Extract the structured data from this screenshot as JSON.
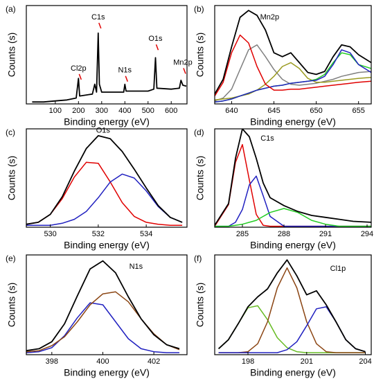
{
  "chart_data": [
    {
      "type": "line",
      "label": "(a)",
      "xlabel": "Binding energy (eV)",
      "ylabel": "Counts (s)",
      "xlim": [
        -25,
        668
      ],
      "ylim": [
        0,
        100
      ],
      "xticks": [
        100,
        200,
        300,
        400,
        500,
        600
      ],
      "x": [
        0,
        50,
        100,
        150,
        190,
        200,
        205,
        260,
        270,
        278,
        285,
        290,
        300,
        350,
        395,
        400,
        405,
        450,
        500,
        525,
        532,
        538,
        600,
        635,
        642,
        650,
        665
      ],
      "series": [
        {
          "color": "#000000",
          "values": [
            2,
            2,
            3,
            4,
            6,
            26,
            8,
            10,
            20,
            12,
            72,
            20,
            12,
            12,
            12,
            20,
            13,
            13,
            13,
            15,
            47,
            16,
            15,
            16,
            24,
            19,
            18
          ]
        }
      ],
      "annotations": [
        {
          "text": "Cl2p",
          "x": 200,
          "y": 36
        },
        {
          "text": "C1s",
          "x": 285,
          "y": 88
        },
        {
          "text": "N1s",
          "x": 400,
          "y": 34
        },
        {
          "text": "O1s",
          "x": 532,
          "y": 66
        },
        {
          "text": "Mn2p",
          "x": 650,
          "y": 42
        }
      ]
    },
    {
      "type": "line",
      "label": "(b)",
      "xlabel": "Binding energy (eV)",
      "ylabel": "Counts (s)",
      "xlim": [
        638,
        656.5
      ],
      "ylim": [
        0,
        100
      ],
      "xticks": [
        640,
        645,
        650,
        655
      ],
      "x": [
        638,
        639,
        640,
        641,
        642,
        643,
        644,
        645,
        646,
        647,
        648,
        649,
        650,
        651,
        652,
        653,
        654,
        655,
        656.5
      ],
      "series": [
        {
          "color": "#808080",
          "values": [
            3,
            6,
            15,
            35,
            55,
            60,
            48,
            35,
            25,
            20,
            19,
            20,
            21,
            23,
            25,
            28,
            30,
            32,
            33
          ]
        },
        {
          "color": "#9a9a20",
          "values": [
            4,
            5,
            6,
            8,
            10,
            14,
            20,
            28,
            38,
            42,
            36,
            26,
            22,
            22,
            23,
            24,
            25,
            26,
            27
          ]
        },
        {
          "color": "#22cc22",
          "values": [
            2,
            3,
            5,
            8,
            11,
            14,
            16,
            18,
            19,
            21,
            22,
            23,
            25,
            30,
            42,
            52,
            50,
            40,
            36
          ]
        },
        {
          "color": "#2020c0",
          "values": [
            2,
            3,
            5,
            8,
            11,
            14,
            16,
            18,
            19,
            21,
            22,
            23,
            24,
            28,
            40,
            55,
            52,
            40,
            32
          ]
        },
        {
          "color": "#e00000",
          "values": [
            8,
            22,
            52,
            70,
            62,
            38,
            20,
            14,
            14,
            15,
            15,
            16,
            17,
            18,
            19,
            20,
            21,
            22,
            23
          ]
        },
        {
          "color": "#000000",
          "values": [
            10,
            25,
            58,
            88,
            95,
            90,
            75,
            52,
            48,
            52,
            42,
            32,
            30,
            33,
            48,
            60,
            58,
            50,
            42
          ]
        }
      ],
      "annotations": [
        {
          "text": "Mn2p",
          "x": 644.5,
          "y": 88
        }
      ]
    },
    {
      "type": "line",
      "label": "(c)",
      "xlabel": "Binding energy (eV)",
      "ylabel": "Counts (s)",
      "xlim": [
        529,
        535.7
      ],
      "ylim": [
        0,
        100
      ],
      "xticks": [
        530,
        532,
        534
      ],
      "x": [
        529,
        529.5,
        530,
        530.5,
        531,
        531.5,
        532,
        532.5,
        533,
        533.5,
        534,
        534.5,
        535,
        535.5
      ],
      "series": [
        {
          "color": "#e00000",
          "values": [
            3,
            5,
            13,
            29,
            51,
            66,
            65,
            46,
            25,
            11,
            5,
            3,
            2,
            2
          ]
        },
        {
          "color": "#2020c0",
          "values": [
            2,
            2,
            2,
            4,
            8,
            16,
            30,
            46,
            54,
            50,
            37,
            21,
            10,
            5
          ]
        },
        {
          "color": "#000000",
          "values": [
            3,
            5,
            13,
            31,
            57,
            80,
            93,
            90,
            77,
            59,
            40,
            22,
            10,
            5
          ]
        }
      ],
      "annotations": [
        {
          "text": "O1s",
          "x": 532.2,
          "y": 98
        }
      ]
    },
    {
      "type": "line",
      "label": "(d)",
      "xlabel": "Binding energy (eV)",
      "ylabel": "Counts (s)",
      "xlim": [
        283,
        294.3
      ],
      "ylim": [
        0,
        100
      ],
      "xticks": [
        285,
        288,
        291,
        294
      ],
      "x": [
        283,
        284,
        284.5,
        285,
        285.5,
        286,
        286.5,
        287,
        288,
        289,
        290,
        291,
        292,
        293,
        294.3
      ],
      "series": [
        {
          "color": "#e00000",
          "values": [
            1,
            23,
            66,
            84,
            48,
            13,
            2,
            1,
            1,
            1,
            1,
            1,
            1,
            1,
            1
          ]
        },
        {
          "color": "#2020c0",
          "values": [
            1,
            1,
            5,
            18,
            43,
            52,
            32,
            11,
            1,
            1,
            1,
            1,
            1,
            1,
            1
          ]
        },
        {
          "color": "#22cc22",
          "values": [
            1,
            1,
            2,
            3,
            5,
            7,
            11,
            15,
            19,
            15,
            7,
            3,
            1,
            1,
            1
          ]
        },
        {
          "color": "#000000",
          "values": [
            2,
            24,
            70,
            100,
            92,
            70,
            45,
            30,
            22,
            16,
            12,
            10,
            8,
            6,
            5
          ]
        }
      ],
      "annotations": [
        {
          "text": "C1s",
          "x": 286.8,
          "y": 90
        }
      ]
    },
    {
      "type": "line",
      "label": "(e)",
      "xlabel": "Binding energy (eV)",
      "ylabel": "Counts (s)",
      "xlim": [
        397,
        403.3
      ],
      "ylim": [
        0,
        100
      ],
      "xticks": [
        398,
        400,
        402
      ],
      "x": [
        397,
        397.5,
        398,
        398.5,
        399,
        399.5,
        400,
        400.5,
        401,
        401.5,
        402,
        402.5,
        403
      ],
      "series": [
        {
          "color": "#2020c0",
          "values": [
            2,
            3,
            7,
            19,
            37,
            52,
            50,
            33,
            16,
            6,
            3,
            2,
            2
          ]
        },
        {
          "color": "#8b4513",
          "values": [
            3,
            4,
            9,
            18,
            33,
            50,
            61,
            63,
            53,
            36,
            21,
            10,
            5
          ]
        },
        {
          "color": "#000000",
          "values": [
            4,
            6,
            13,
            31,
            59,
            86,
            94,
            82,
            58,
            36,
            20,
            10,
            6
          ]
        }
      ],
      "annotations": [
        {
          "text": "N1s",
          "x": 401.3,
          "y": 88
        }
      ]
    },
    {
      "type": "line",
      "label": "(f)",
      "xlabel": "Binding energy (eV)",
      "ylabel": "Counts (s)",
      "xlim": [
        196.3,
        204.3
      ],
      "ylim": [
        0,
        100
      ],
      "xticks": [
        198,
        201,
        204
      ],
      "x": [
        196.5,
        197,
        197.5,
        198,
        198.5,
        199,
        199.5,
        200,
        200.5,
        201,
        201.5,
        202,
        202.5,
        203,
        203.5,
        204
      ],
      "series": [
        {
          "color": "#66bb22",
          "values": [
            6,
            15,
            31,
            47,
            49,
            35,
            17,
            7,
            3,
            2,
            2,
            2,
            2,
            2,
            2,
            2
          ]
        },
        {
          "color": "#8b4513",
          "values": [
            2,
            2,
            2,
            3,
            11,
            33,
            67,
            87,
            67,
            33,
            11,
            3,
            2,
            2,
            2,
            2
          ]
        },
        {
          "color": "#2020c0",
          "values": [
            2,
            2,
            2,
            2,
            2,
            2,
            2,
            5,
            13,
            29,
            46,
            48,
            33,
            15,
            6,
            3
          ]
        },
        {
          "color": "#000000",
          "values": [
            6,
            15,
            31,
            48,
            58,
            66,
            82,
            95,
            79,
            60,
            64,
            50,
            33,
            15,
            6,
            3
          ]
        }
      ],
      "annotations": [
        {
          "text": "Cl1p",
          "x": 202.6,
          "y": 86
        }
      ]
    }
  ]
}
